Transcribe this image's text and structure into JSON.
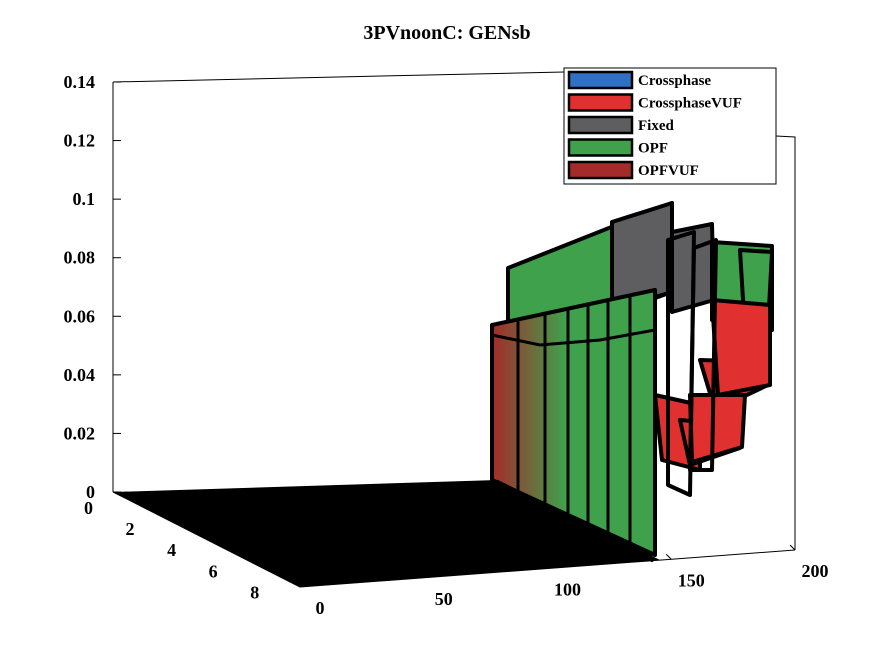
{
  "chart_data": {
    "type": "3d-surface",
    "title": "3PVnoonC: GENsb",
    "xlabel": "",
    "ylabel": "",
    "zlabel": "",
    "xlim": [
      0,
      200
    ],
    "ylim": [
      0,
      9
    ],
    "zlim": [
      0,
      0.14
    ],
    "x_ticks": [
      "0",
      "50",
      "100",
      "150",
      "200"
    ],
    "y_ticks": [
      "0",
      "2",
      "4",
      "6",
      "8"
    ],
    "z_ticks": [
      "0",
      "0.02",
      "0.04",
      "0.06",
      "0.08",
      "0.1",
      "0.12",
      "0.14"
    ],
    "legend": {
      "placement": "top-right",
      "entries": [
        {
          "label": "Crossphase",
          "color": "#2f6fc4"
        },
        {
          "label": "CrossphaseVUF",
          "color": "#e03030"
        },
        {
          "label": "Fixed",
          "color": "#5e5e60"
        },
        {
          "label": "OPF",
          "color": "#3fa14c"
        },
        {
          "label": "OPFVUF",
          "color": "#a52a2a"
        }
      ]
    },
    "series": [
      {
        "name": "OPF",
        "x": [
          120,
          130,
          140,
          150,
          160,
          170,
          180,
          190
        ],
        "z": [
          0.077,
          0.08,
          0.082,
          0.081,
          0.078,
          0.079,
          0.077,
          0.076
        ]
      },
      {
        "name": "Fixed",
        "x": [
          120,
          130,
          140,
          150,
          160,
          170,
          180,
          190
        ],
        "z": [
          0.08,
          0.082,
          0.085,
          0.083,
          0.079,
          0.08,
          0.078,
          0.077
        ]
      },
      {
        "name": "CrossphaseVUF",
        "x": [
          150,
          160,
          170,
          180,
          190
        ],
        "z": [
          0.045,
          0.05,
          0.043,
          0.055,
          0.052
        ]
      },
      {
        "name": "OPFVUF",
        "x": [
          120,
          130,
          140
        ],
        "z": [
          0.04,
          0.038,
          0.041
        ]
      }
    ]
  }
}
